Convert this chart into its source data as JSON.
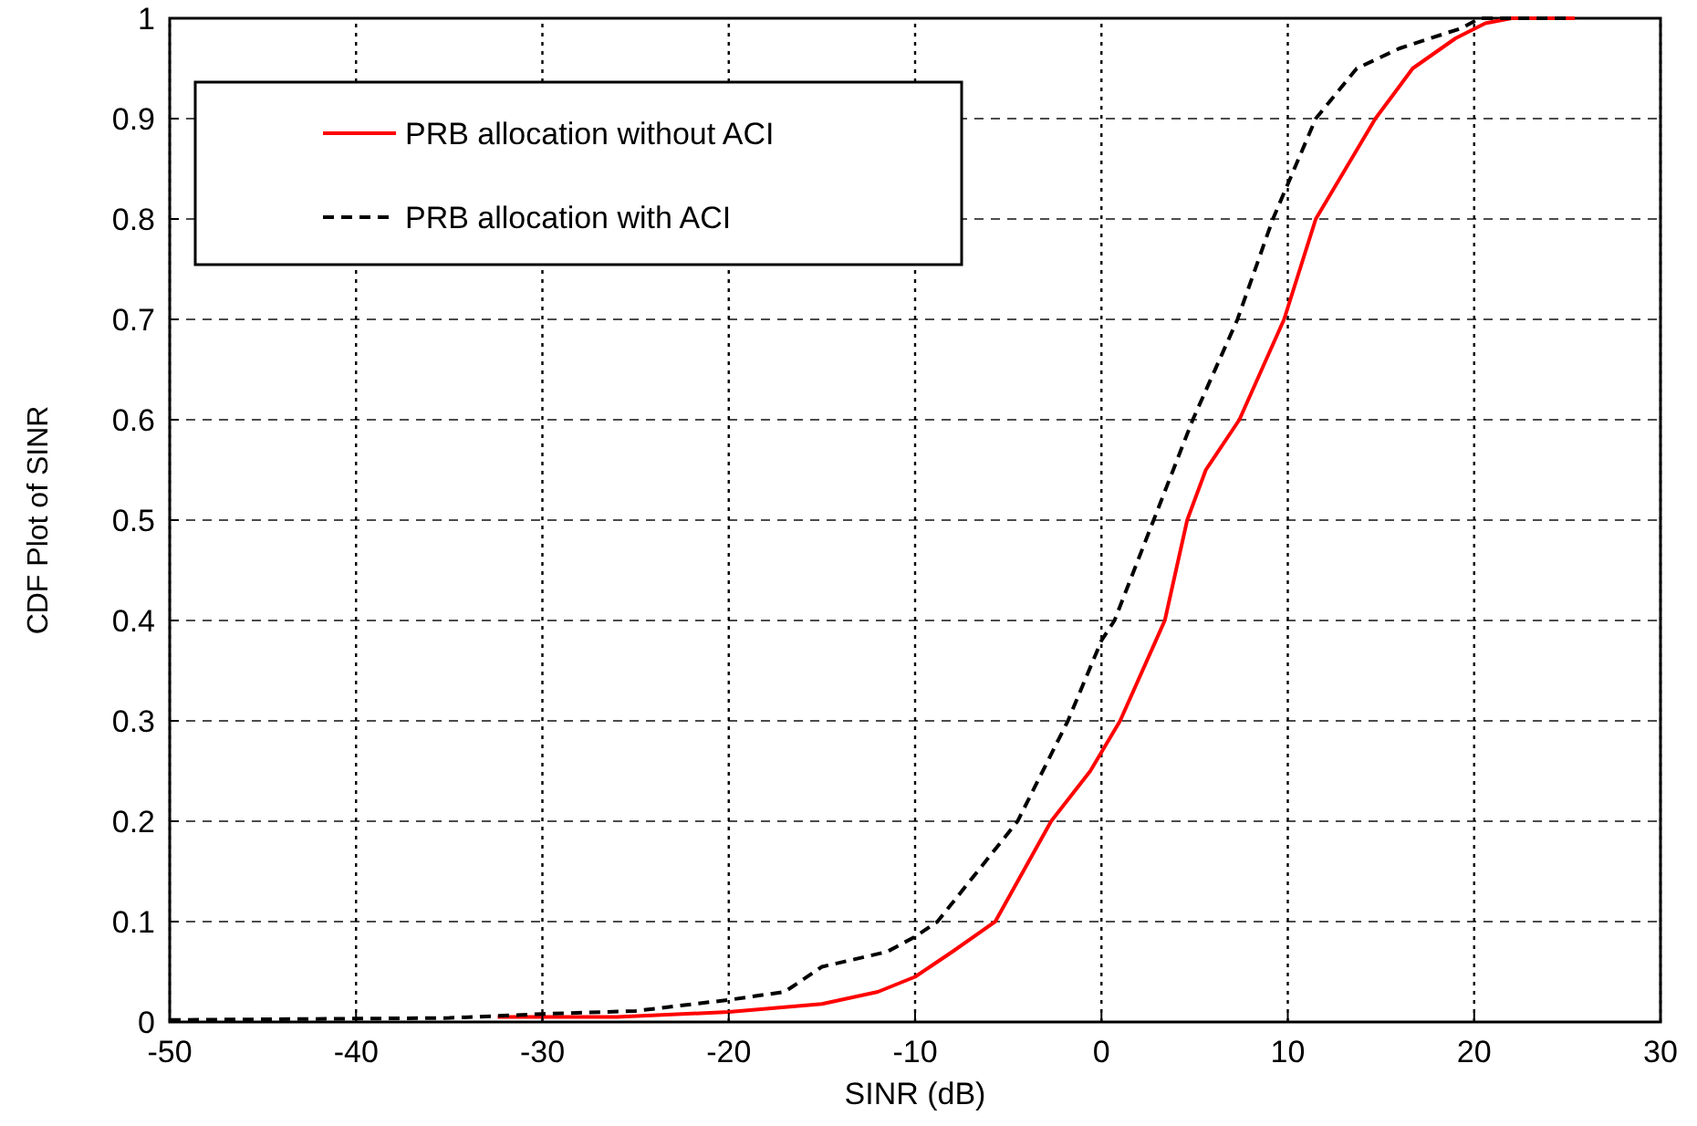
{
  "chart_data": {
    "type": "line",
    "xlabel": "SINR (dB)",
    "ylabel": "CDF Plot of SINR",
    "xlim": [
      -50,
      30
    ],
    "ylim": [
      0,
      1
    ],
    "xticks": [
      -50,
      -40,
      -30,
      -20,
      -10,
      0,
      10,
      20,
      30
    ],
    "yticks": [
      0,
      0.1,
      0.2,
      0.3,
      0.4,
      0.5,
      0.6,
      0.7,
      0.8,
      0.9,
      1
    ],
    "grid": true,
    "legend": "top left",
    "marker": "none",
    "series": [
      {
        "name": "PRB allocation without ACI",
        "color": "#ff0000",
        "line_style": "solid",
        "x": [
          -32.4,
          -26,
          -20,
          -15,
          -12,
          -10,
          -8,
          -5.7,
          -2.7,
          -0.6,
          1,
          3.4,
          4.6,
          5.6,
          7.4,
          9.8,
          11.5,
          14.7,
          16.7,
          19,
          20.6,
          22,
          25.4
        ],
        "values": [
          0.005,
          0.005,
          0.01,
          0.018,
          0.03,
          0.045,
          0.07,
          0.1,
          0.2,
          0.25,
          0.3,
          0.4,
          0.5,
          0.55,
          0.6,
          0.7,
          0.8,
          0.9,
          0.95,
          0.98,
          0.995,
          1,
          1
        ]
      },
      {
        "name": "PRB allocation with ACI",
        "color": "#000000",
        "line_style": "dashed",
        "x": [
          -50,
          -35,
          -30,
          -25,
          -20,
          -17,
          -15,
          -11.5,
          -10,
          -8.8,
          -4.5,
          -1.8,
          0,
          0.7,
          2.8,
          4.9,
          7.3,
          9.2,
          11.5,
          13.7,
          16,
          19.3,
          20.3,
          25
        ],
        "values": [
          0.002,
          0.004,
          0.008,
          0.011,
          0.022,
          0.03,
          0.055,
          0.07,
          0.085,
          0.1,
          0.2,
          0.3,
          0.38,
          0.4,
          0.5,
          0.6,
          0.7,
          0.8,
          0.9,
          0.95,
          0.97,
          0.99,
          1,
          1
        ]
      }
    ]
  }
}
